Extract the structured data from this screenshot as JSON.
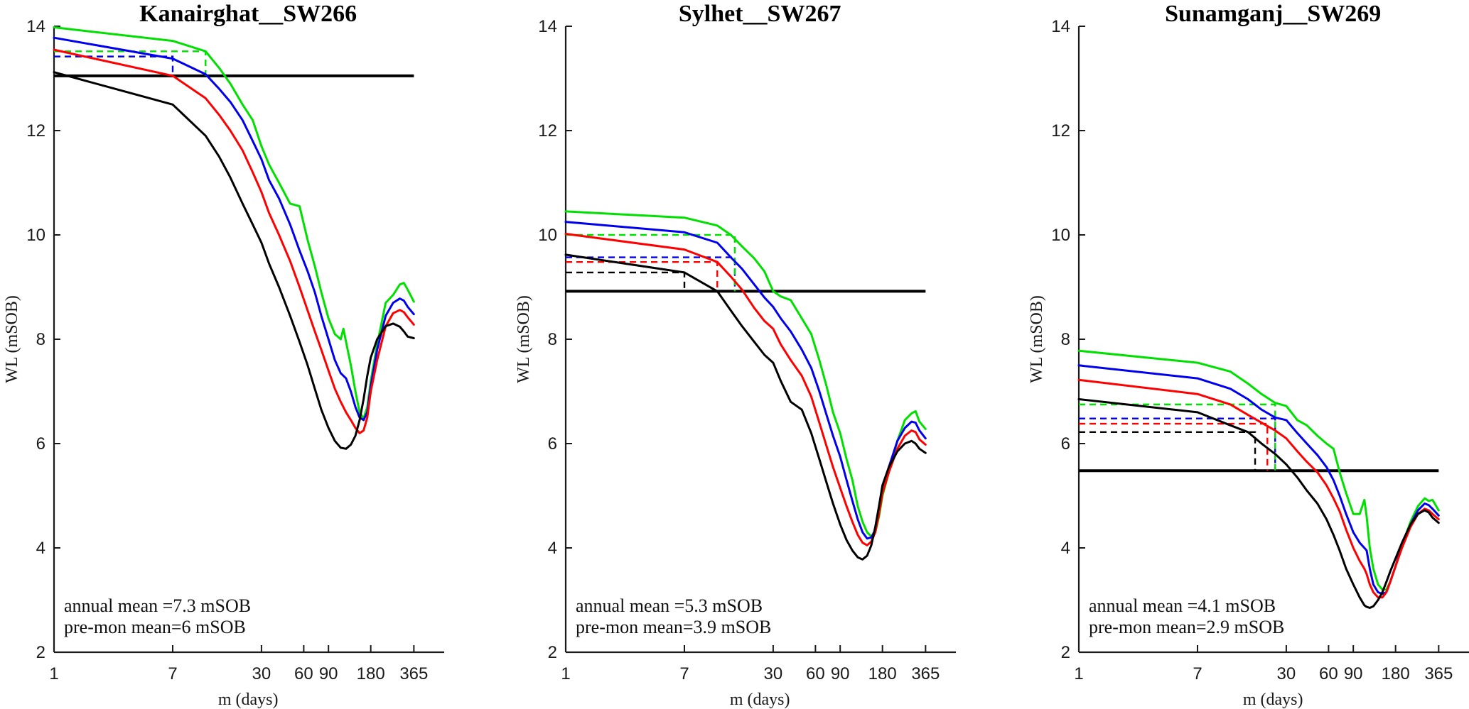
{
  "chart_data": [
    {
      "type": "line",
      "title": "Kanairghat__SW266",
      "xlabel": "m (days)",
      "ylabel": "WL (mSOB)",
      "xscale": "log",
      "xlim": [
        1,
        600
      ],
      "ylim": [
        2,
        14
      ],
      "xticks": [
        1,
        7,
        30,
        60,
        90,
        180,
        365
      ],
      "xtick_labels": [
        "1",
        "7",
        "30",
        "60",
        "90",
        "180",
        "365"
      ],
      "yticks": [
        2,
        4,
        6,
        8,
        10,
        12,
        14
      ],
      "ytick_labels": [
        "2",
        "4",
        "6",
        "8",
        "10",
        "12",
        "14"
      ],
      "grid": false,
      "threshold": 13.05,
      "annotations": [
        "annual mean   =7.3 mSOB",
        "pre-mon mean=6 mSOB"
      ],
      "series": [
        {
          "name": "green",
          "color": "#00e000",
          "x": [
            1,
            7,
            12,
            15,
            18,
            22,
            26,
            30,
            34,
            40,
            48,
            56,
            64,
            72,
            80,
            90,
            100,
            110,
            115,
            120,
            130,
            140,
            150,
            160,
            170,
            180,
            200,
            230,
            260,
            290,
            310,
            330,
            365
          ],
          "y": [
            13.98,
            13.72,
            13.52,
            13.2,
            12.9,
            12.5,
            12.2,
            11.7,
            11.35,
            11.0,
            10.6,
            10.55,
            9.9,
            9.4,
            8.9,
            8.4,
            8.1,
            8.0,
            8.2,
            7.95,
            7.5,
            7.0,
            6.6,
            6.48,
            6.7,
            7.2,
            7.9,
            8.7,
            8.85,
            9.05,
            9.08,
            8.95,
            8.72
          ]
        },
        {
          "name": "blue",
          "color": "#0000ee",
          "x": [
            1,
            7,
            12,
            15,
            18,
            22,
            26,
            30,
            34,
            40,
            48,
            56,
            64,
            72,
            80,
            90,
            100,
            110,
            120,
            130,
            140,
            150,
            160,
            170,
            180,
            200,
            230,
            260,
            290,
            310,
            330,
            365
          ],
          "y": [
            13.78,
            13.38,
            13.08,
            12.8,
            12.55,
            12.2,
            11.8,
            11.45,
            11.05,
            10.7,
            10.2,
            9.7,
            9.3,
            8.9,
            8.45,
            8.0,
            7.6,
            7.35,
            7.25,
            7.0,
            6.7,
            6.5,
            6.45,
            6.6,
            7.1,
            7.8,
            8.45,
            8.7,
            8.78,
            8.74,
            8.62,
            8.48
          ]
        },
        {
          "name": "red",
          "color": "#ff0000",
          "x": [
            1,
            7,
            12,
            15,
            18,
            22,
            26,
            30,
            34,
            40,
            48,
            56,
            64,
            72,
            80,
            90,
            100,
            110,
            120,
            130,
            140,
            150,
            160,
            170,
            180,
            200,
            230,
            260,
            290,
            310,
            330,
            365
          ],
          "y": [
            13.55,
            13.05,
            12.62,
            12.3,
            12.0,
            11.62,
            11.2,
            10.82,
            10.42,
            10.0,
            9.5,
            9.0,
            8.55,
            8.15,
            7.8,
            7.4,
            7.05,
            6.8,
            6.6,
            6.45,
            6.3,
            6.2,
            6.25,
            6.5,
            7.0,
            7.6,
            8.25,
            8.5,
            8.56,
            8.52,
            8.42,
            8.28
          ]
        },
        {
          "name": "black",
          "color": "#000000",
          "x": [
            1,
            7,
            12,
            15,
            18,
            22,
            26,
            30,
            34,
            40,
            48,
            56,
            64,
            72,
            80,
            90,
            100,
            110,
            120,
            130,
            140,
            150,
            160,
            170,
            180,
            200,
            230,
            260,
            290,
            310,
            330,
            365
          ],
          "y": [
            13.12,
            12.5,
            11.9,
            11.5,
            11.1,
            10.6,
            10.2,
            9.85,
            9.45,
            9.0,
            8.45,
            7.95,
            7.5,
            7.05,
            6.65,
            6.3,
            6.05,
            5.92,
            5.9,
            5.98,
            6.15,
            6.45,
            6.85,
            7.3,
            7.65,
            8.0,
            8.25,
            8.3,
            8.24,
            8.15,
            8.05,
            8.02
          ]
        }
      ],
      "reference_markers": [
        {
          "color": "#0000ee",
          "x": 7,
          "y": 13.42
        },
        {
          "color": "#00e000",
          "x": 12,
          "y": 13.52
        }
      ]
    },
    {
      "type": "line",
      "title": "Sylhet__SW267",
      "xlabel": "m (days)",
      "ylabel": "WL (mSOB)",
      "xscale": "log",
      "xlim": [
        1,
        600
      ],
      "ylim": [
        2,
        14
      ],
      "xticks": [
        1,
        7,
        30,
        60,
        90,
        180,
        365
      ],
      "xtick_labels": [
        "1",
        "7",
        "30",
        "60",
        "90",
        "180",
        "365"
      ],
      "yticks": [
        2,
        4,
        6,
        8,
        10,
        12,
        14
      ],
      "ytick_labels": [
        "2",
        "4",
        "6",
        "8",
        "10",
        "12",
        "14"
      ],
      "grid": false,
      "threshold": 8.92,
      "annotations": [
        "annual mean   =5.3 mSOB",
        "pre-mon mean=3.9 mSOB"
      ],
      "series": [
        {
          "name": "green",
          "color": "#00e000",
          "x": [
            1,
            7,
            12,
            15,
            18,
            22,
            26,
            30,
            34,
            40,
            48,
            56,
            64,
            72,
            80,
            90,
            100,
            110,
            120,
            130,
            140,
            150,
            160,
            170,
            180,
            200,
            230,
            260,
            290,
            310,
            330,
            365
          ],
          "y": [
            10.45,
            10.33,
            10.18,
            10.0,
            9.78,
            9.55,
            9.3,
            8.92,
            8.82,
            8.75,
            8.4,
            8.1,
            7.6,
            7.1,
            6.6,
            6.2,
            5.7,
            5.3,
            4.8,
            4.5,
            4.3,
            4.22,
            4.3,
            4.6,
            5.0,
            5.45,
            6.05,
            6.45,
            6.58,
            6.62,
            6.42,
            6.28
          ]
        },
        {
          "name": "blue",
          "color": "#0000ee",
          "x": [
            1,
            7,
            12,
            15,
            18,
            22,
            26,
            30,
            34,
            40,
            48,
            56,
            64,
            72,
            80,
            90,
            100,
            110,
            120,
            130,
            140,
            150,
            160,
            170,
            180,
            200,
            230,
            260,
            290,
            310,
            330,
            365
          ],
          "y": [
            10.25,
            10.05,
            9.85,
            9.57,
            9.35,
            9.05,
            8.8,
            8.62,
            8.4,
            8.15,
            7.8,
            7.45,
            7.0,
            6.55,
            6.15,
            5.75,
            5.3,
            4.9,
            4.55,
            4.3,
            4.18,
            4.2,
            4.35,
            4.7,
            5.1,
            5.55,
            6.05,
            6.3,
            6.42,
            6.4,
            6.25,
            6.1
          ]
        },
        {
          "name": "red",
          "color": "#ff0000",
          "x": [
            1,
            7,
            12,
            15,
            18,
            22,
            26,
            30,
            34,
            40,
            48,
            56,
            64,
            72,
            80,
            90,
            100,
            110,
            120,
            130,
            140,
            150,
            160,
            170,
            180,
            200,
            230,
            260,
            290,
            310,
            330,
            365
          ],
          "y": [
            10.02,
            9.72,
            9.48,
            9.2,
            8.95,
            8.6,
            8.35,
            8.2,
            7.9,
            7.6,
            7.3,
            6.9,
            6.4,
            5.95,
            5.55,
            5.15,
            4.8,
            4.5,
            4.25,
            4.1,
            4.05,
            4.12,
            4.3,
            4.65,
            5.05,
            5.45,
            5.9,
            6.15,
            6.25,
            6.22,
            6.08,
            5.98
          ]
        },
        {
          "name": "black",
          "color": "#000000",
          "x": [
            1,
            7,
            12,
            15,
            18,
            22,
            26,
            30,
            34,
            40,
            48,
            56,
            64,
            72,
            80,
            90,
            100,
            110,
            120,
            130,
            140,
            150,
            160,
            170,
            180,
            200,
            230,
            260,
            290,
            310,
            330,
            365
          ],
          "y": [
            9.62,
            9.28,
            8.92,
            8.55,
            8.25,
            7.95,
            7.7,
            7.55,
            7.2,
            6.8,
            6.65,
            6.2,
            5.7,
            5.25,
            4.85,
            4.45,
            4.15,
            3.95,
            3.82,
            3.78,
            3.85,
            4.05,
            4.4,
            4.8,
            5.2,
            5.55,
            5.85,
            6.0,
            6.05,
            6.0,
            5.9,
            5.82
          ]
        }
      ],
      "reference_markers": [
        {
          "color": "#000000",
          "x": 7,
          "y": 9.28
        },
        {
          "color": "#ff0000",
          "x": 12,
          "y": 9.48
        },
        {
          "color": "#0000ee",
          "x": 16,
          "y": 9.57
        },
        {
          "color": "#00e000",
          "x": 16,
          "y": 10.0
        }
      ]
    },
    {
      "type": "line",
      "title": "Sunamganj__SW269",
      "xlabel": "m (days)",
      "ylabel": "WL (mSOB)",
      "xscale": "log",
      "xlim": [
        1,
        600
      ],
      "ylim": [
        2,
        14
      ],
      "xticks": [
        1,
        7,
        30,
        60,
        90,
        180,
        365
      ],
      "xtick_labels": [
        "1",
        "7",
        "30",
        "60",
        "90",
        "180",
        "365"
      ],
      "yticks": [
        2,
        4,
        6,
        8,
        10,
        12,
        14
      ],
      "ytick_labels": [
        "2",
        "4",
        "6",
        "8",
        "10",
        "12",
        "14"
      ],
      "grid": false,
      "threshold": 5.48,
      "annotations": [
        "annual mean   =4.1 mSOB",
        "pre-mon mean=2.9 mSOB"
      ],
      "series": [
        {
          "name": "green",
          "color": "#00e000",
          "x": [
            1,
            7,
            12,
            16,
            20,
            25,
            30,
            36,
            42,
            50,
            58,
            65,
            72,
            80,
            90,
            100,
            108,
            112,
            118,
            125,
            135,
            145,
            155,
            165,
            180,
            200,
            230,
            260,
            290,
            310,
            330,
            365
          ],
          "y": [
            7.78,
            7.55,
            7.38,
            7.15,
            6.95,
            6.78,
            6.72,
            6.45,
            6.35,
            6.15,
            6.0,
            5.9,
            5.45,
            5.05,
            4.65,
            4.65,
            4.92,
            4.6,
            4.0,
            3.6,
            3.3,
            3.2,
            3.2,
            3.35,
            3.65,
            4.05,
            4.5,
            4.8,
            4.95,
            4.9,
            4.92,
            4.72
          ]
        },
        {
          "name": "blue",
          "color": "#0000ee",
          "x": [
            1,
            7,
            12,
            16,
            20,
            25,
            30,
            36,
            42,
            50,
            58,
            65,
            72,
            80,
            90,
            100,
            108,
            112,
            118,
            125,
            135,
            145,
            155,
            165,
            180,
            200,
            230,
            260,
            290,
            310,
            330,
            365
          ],
          "y": [
            7.5,
            7.25,
            7.05,
            6.85,
            6.65,
            6.5,
            6.45,
            6.2,
            6.0,
            5.78,
            5.55,
            5.3,
            5.0,
            4.65,
            4.3,
            4.1,
            4.0,
            3.95,
            3.6,
            3.3,
            3.15,
            3.12,
            3.15,
            3.35,
            3.65,
            4.05,
            4.45,
            4.72,
            4.85,
            4.82,
            4.75,
            4.62
          ]
        },
        {
          "name": "red",
          "color": "#ff0000",
          "x": [
            1,
            7,
            12,
            16,
            20,
            25,
            30,
            36,
            42,
            50,
            58,
            65,
            72,
            80,
            90,
            100,
            108,
            112,
            118,
            125,
            135,
            145,
            155,
            165,
            180,
            200,
            230,
            260,
            290,
            310,
            330,
            365
          ],
          "y": [
            7.22,
            6.95,
            6.75,
            6.55,
            6.4,
            6.25,
            6.1,
            5.85,
            5.65,
            5.45,
            5.2,
            4.95,
            4.7,
            4.35,
            4.0,
            3.75,
            3.6,
            3.5,
            3.3,
            3.15,
            3.05,
            3.05,
            3.15,
            3.35,
            3.65,
            4.0,
            4.4,
            4.65,
            4.75,
            4.72,
            4.65,
            4.55
          ]
        },
        {
          "name": "black",
          "color": "#000000",
          "x": [
            1,
            7,
            12,
            16,
            20,
            25,
            30,
            36,
            42,
            50,
            58,
            65,
            72,
            80,
            90,
            100,
            108,
            112,
            118,
            125,
            135,
            145,
            155,
            165,
            180,
            200,
            230,
            260,
            290,
            310,
            330,
            365
          ],
          "y": [
            6.85,
            6.6,
            6.35,
            6.22,
            6.0,
            5.8,
            5.6,
            5.35,
            5.1,
            4.85,
            4.55,
            4.25,
            3.95,
            3.6,
            3.3,
            3.05,
            2.9,
            2.87,
            2.85,
            2.88,
            3.0,
            3.15,
            3.35,
            3.55,
            3.8,
            4.1,
            4.45,
            4.65,
            4.72,
            4.68,
            4.58,
            4.48
          ]
        }
      ],
      "reference_markers": [
        {
          "color": "#000000",
          "x": 18,
          "y": 6.22
        },
        {
          "color": "#ff0000",
          "x": 22,
          "y": 6.38
        },
        {
          "color": "#0000ee",
          "x": 25,
          "y": 6.48
        },
        {
          "color": "#00e000",
          "x": 25,
          "y": 6.75
        }
      ]
    }
  ]
}
